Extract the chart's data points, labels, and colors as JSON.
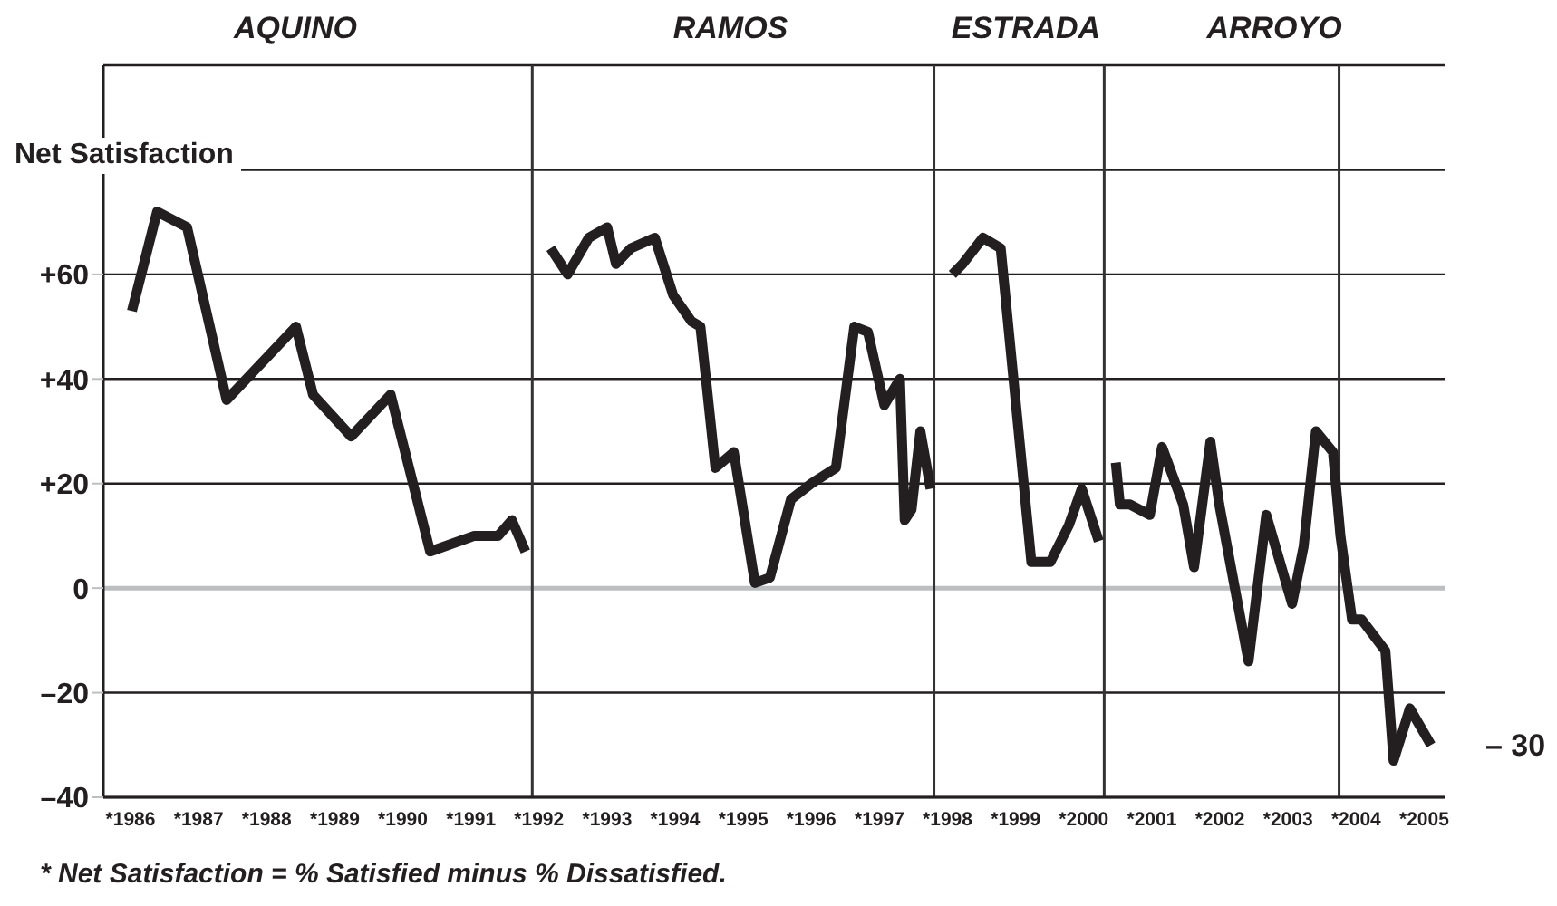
{
  "chart_data": {
    "type": "line",
    "ylabel": "Net Satisfaction",
    "xlim": [
      1985.6,
      2005.3
    ],
    "ylim": [
      -40,
      100
    ],
    "xticks": [
      {
        "value": 1986,
        "label": "*1986"
      },
      {
        "value": 1987,
        "label": "*1987"
      },
      {
        "value": 1988,
        "label": "*1988"
      },
      {
        "value": 1989,
        "label": "*1989"
      },
      {
        "value": 1990,
        "label": "*1990"
      },
      {
        "value": 1991,
        "label": "*1991"
      },
      {
        "value": 1992,
        "label": "*1992"
      },
      {
        "value": 1993,
        "label": "*1993"
      },
      {
        "value": 1994,
        "label": "*1994"
      },
      {
        "value": 1995,
        "label": "*1995"
      },
      {
        "value": 1996,
        "label": "*1996"
      },
      {
        "value": 1997,
        "label": "*1997"
      },
      {
        "value": 1998,
        "label": "*1998"
      },
      {
        "value": 1999,
        "label": "*1999"
      },
      {
        "value": 2000,
        "label": "*2000"
      },
      {
        "value": 2001,
        "label": "*2001"
      },
      {
        "value": 2002,
        "label": "*2002"
      },
      {
        "value": 2003,
        "label": "*2003"
      },
      {
        "value": 2004,
        "label": "*2004"
      },
      {
        "value": 2005,
        "label": "*2005"
      }
    ],
    "yticks": [
      {
        "value": -40,
        "label": "–40"
      },
      {
        "value": -20,
        "label": "–20"
      },
      0,
      {
        "value": 20,
        "label": "+20"
      },
      {
        "value": 40,
        "label": "+40"
      },
      {
        "value": 60,
        "label": "+60"
      },
      {
        "value": 80,
        "label": null
      }
    ],
    "grid": "y",
    "marker": "none",
    "line_style": "solid",
    "series": [
      {
        "color": "#231f20",
        "x": [
          1986.02,
          1986.39,
          1986.83,
          1987.41,
          1988.43,
          1988.68,
          1989.24,
          1989.82,
          1990.4,
          1991.05,
          1991.4,
          1991.6,
          1991.8
        ],
        "values": [
          53,
          72,
          69,
          36,
          50,
          37,
          29,
          37,
          7,
          10,
          10,
          13,
          7
        ]
      },
      {
        "color": "#231f20",
        "x": [
          1992.17,
          1992.42,
          1992.73,
          1993.0,
          1993.13,
          1993.35,
          1993.7,
          1993.97,
          1994.24,
          1994.37,
          1994.59,
          1994.86,
          1995.17,
          1995.39,
          1995.7,
          1996.0,
          1996.36,
          1996.63,
          1996.83,
          1997.07,
          1997.3,
          1997.37,
          1997.47,
          1997.6,
          1997.75
        ],
        "values": [
          65,
          60,
          67,
          69,
          62,
          65,
          67,
          56,
          51,
          50,
          23,
          26,
          1,
          2,
          17,
          20,
          23,
          50,
          49,
          35,
          40,
          13,
          15,
          30,
          19
        ]
      },
      {
        "color": "#231f20",
        "x": [
          1998.07,
          1998.22,
          1998.52,
          1998.78,
          1999.02,
          1999.23,
          1999.51,
          1999.78,
          1999.97,
          2000.22
        ],
        "values": [
          60,
          62,
          67,
          65,
          33,
          5,
          5,
          12,
          19,
          9
        ]
      },
      {
        "color": "#231f20",
        "x": [
          2000.47,
          2000.53,
          2000.68,
          2000.97,
          2001.15,
          2001.46,
          2001.62,
          2001.86,
          2001.99,
          2002.42,
          2002.68,
          2003.06,
          2003.23,
          2003.41,
          2003.66,
          2003.77,
          2003.94,
          2004.08,
          2004.43,
          2004.55,
          2004.79,
          2005.1
        ],
        "values": [
          24,
          16,
          16,
          14,
          27,
          16,
          4,
          28,
          16,
          -14,
          14,
          -3,
          8,
          30,
          26,
          10,
          -6,
          -6,
          -12,
          -33,
          -23,
          -30
        ]
      }
    ],
    "ref_lines": [
      {
        "axis": "y",
        "value": 0,
        "color": "#bcbec0"
      },
      {
        "axis": "x",
        "value": 1991.9,
        "color": "#333333"
      },
      {
        "axis": "x",
        "value": 1997.8,
        "color": "#333333"
      },
      {
        "axis": "x",
        "value": 2000.3,
        "color": "#333333"
      },
      {
        "axis": "x",
        "value": 2003.75,
        "color": "#333333"
      }
    ],
    "annotations": [
      "AQUINO",
      "RAMOS",
      "ESTRADA",
      "ARROYO",
      {
        "text": "– 30",
        "x": 2005.1,
        "y": -30
      },
      "* Net Satisfaction = % Satisfied minus % Dissatisfied."
    ]
  }
}
